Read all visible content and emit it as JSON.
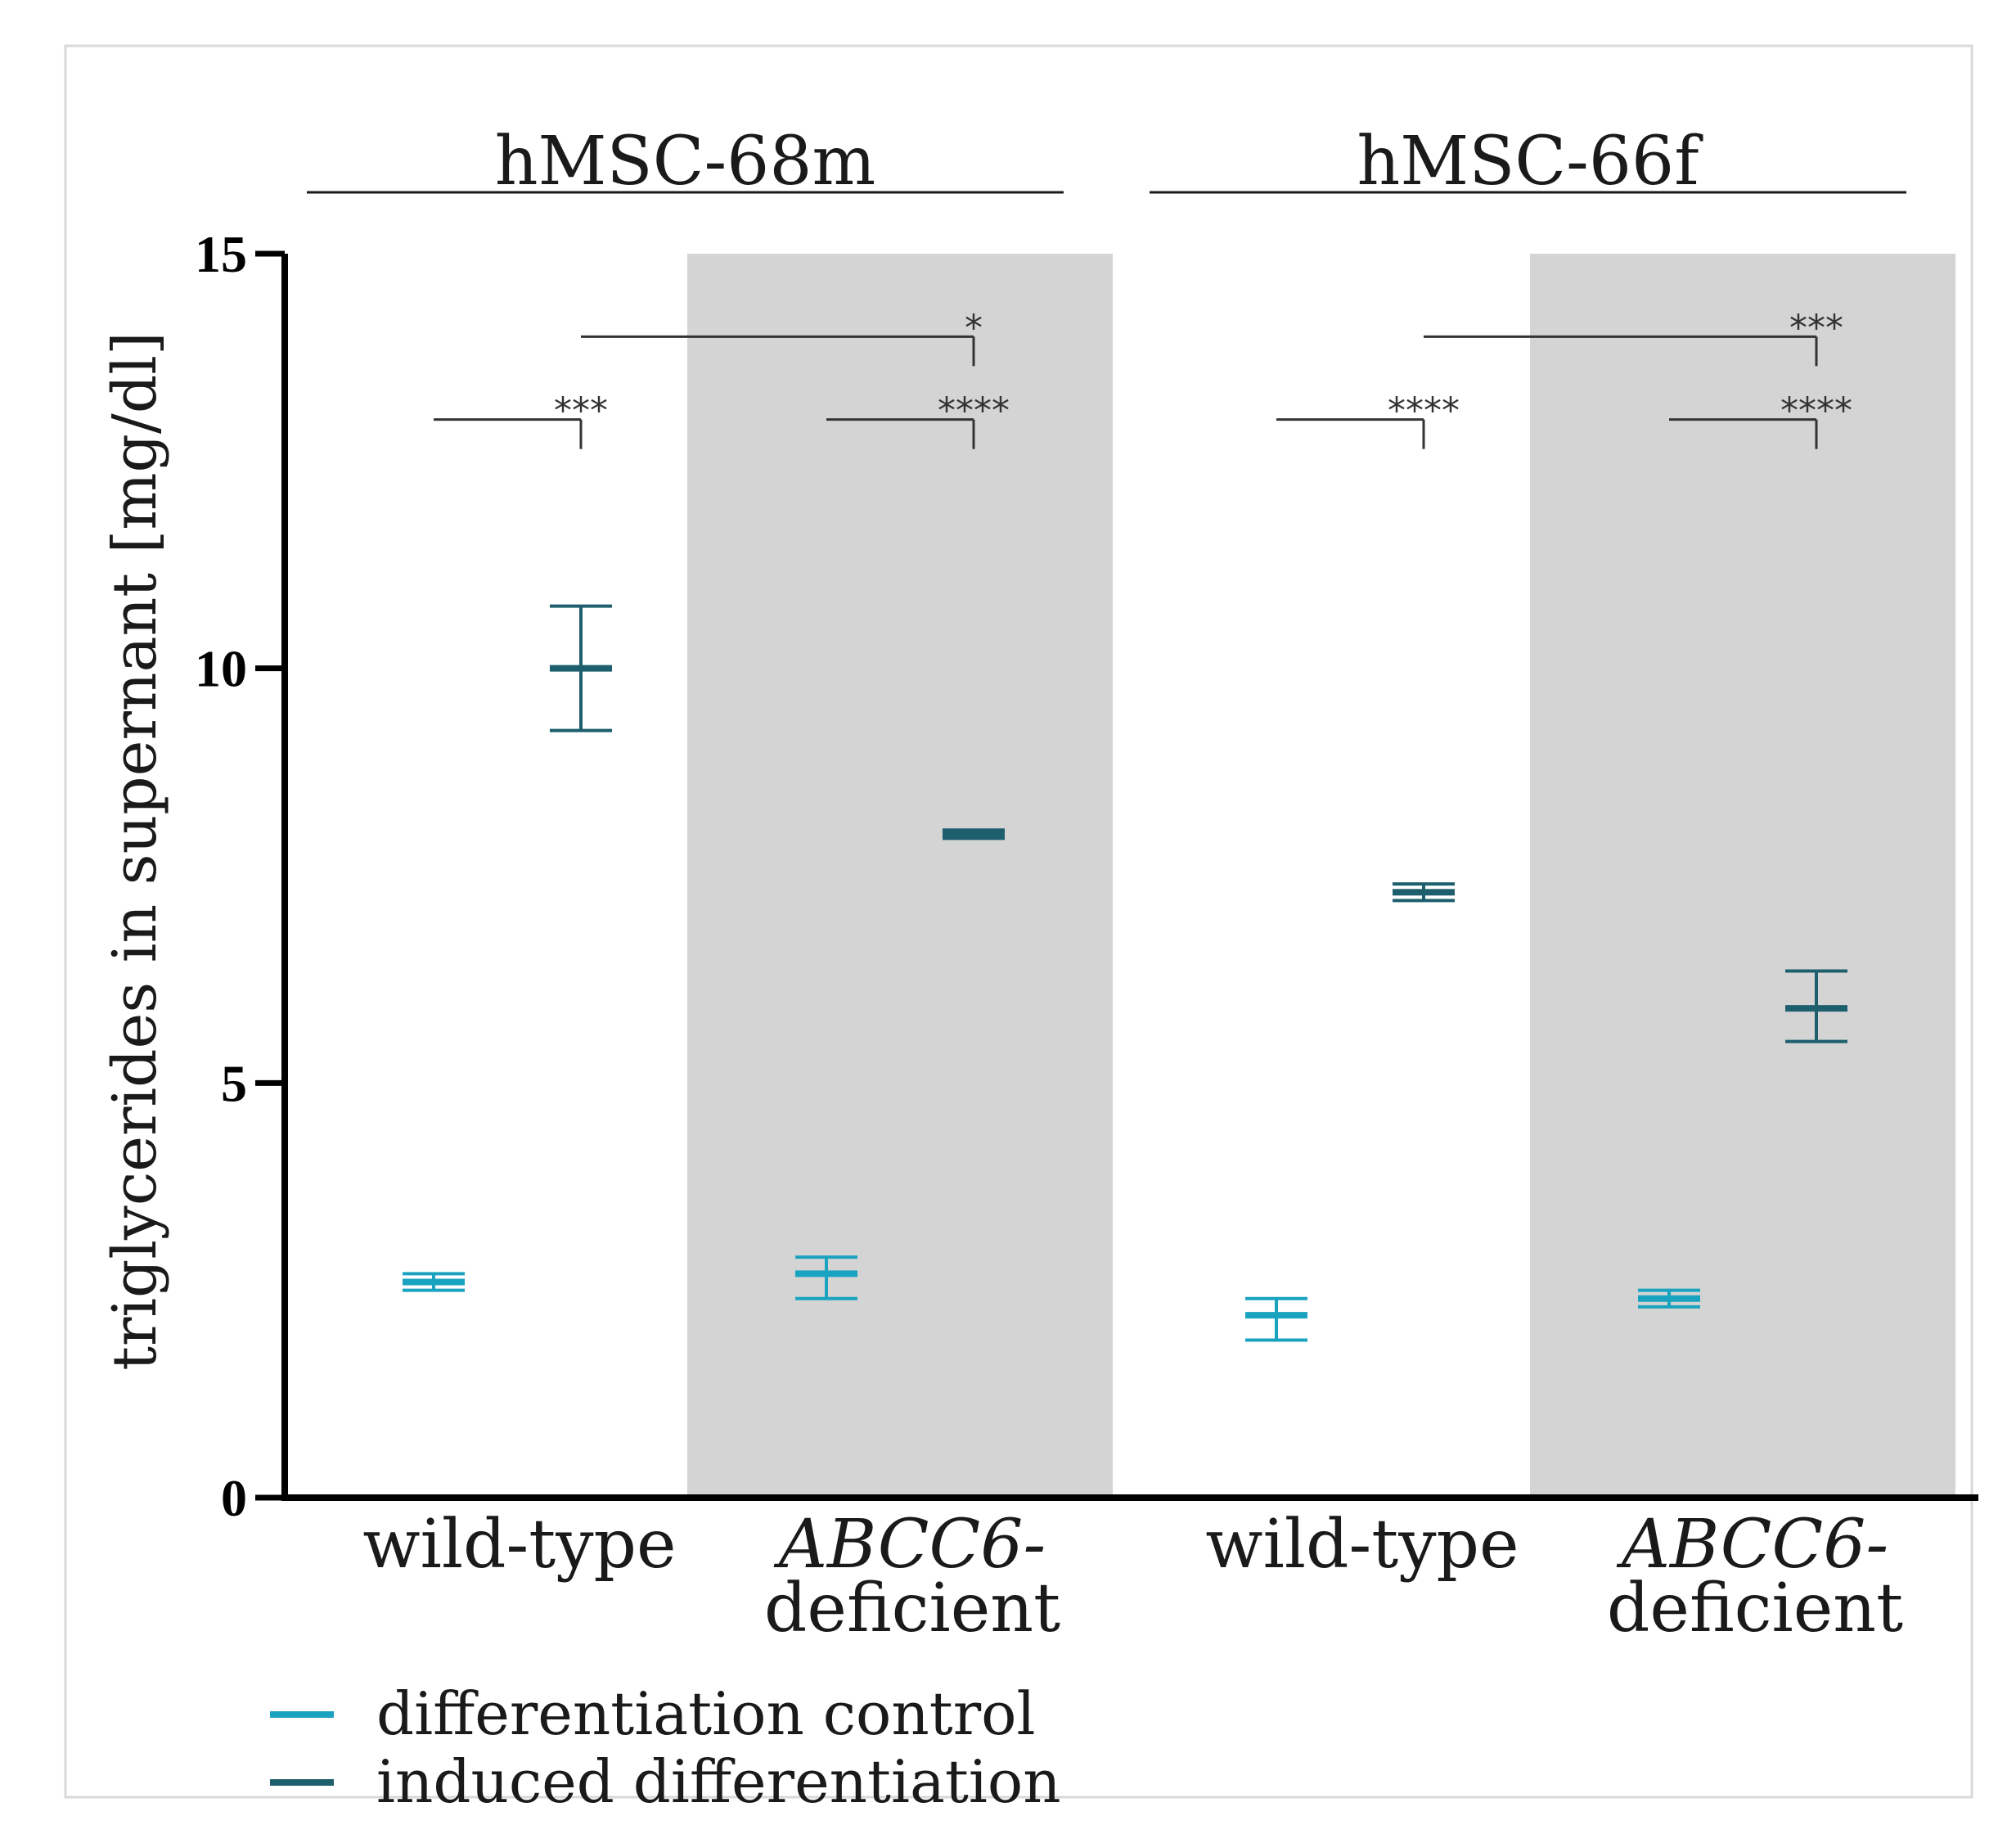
{
  "chart_data": {
    "type": "scatter",
    "ylabel": "triglycerides in supernant [mg/dl]",
    "ylim": [
      0,
      15
    ],
    "yticks": [
      0,
      5,
      10,
      15
    ],
    "groups": [
      {
        "label": "hMSC-68m",
        "categories": [
          "wild-type",
          "ABCC6-deficient"
        ]
      },
      {
        "label": "hMSC-66f",
        "categories": [
          "wild-type",
          "ABCC6-deficient"
        ]
      }
    ],
    "category_labels": [
      {
        "lines": [
          "wild-type"
        ],
        "italic": false
      },
      {
        "lines": [
          "ABCC6-",
          "deficient"
        ],
        "italic_first": true
      },
      {
        "lines": [
          "wild-type"
        ],
        "italic": false
      },
      {
        "lines": [
          "ABCC6-",
          "deficient"
        ],
        "italic_first": true
      }
    ],
    "shaded_categories": [
      1,
      3
    ],
    "series": [
      {
        "name": "differentiation control",
        "color": "#1aa3c0",
        "points": [
          {
            "category": 0,
            "mean": 2.6,
            "low": 2.5,
            "high": 2.7
          },
          {
            "category": 1,
            "mean": 2.7,
            "low": 2.4,
            "high": 2.9
          },
          {
            "category": 2,
            "mean": 2.2,
            "low": 1.9,
            "high": 2.4
          },
          {
            "category": 3,
            "mean": 2.4,
            "low": 2.3,
            "high": 2.5
          }
        ]
      },
      {
        "name": "induced differentiation",
        "color": "#1e5f6e",
        "points": [
          {
            "category": 0,
            "mean": 10.0,
            "low": 9.25,
            "high": 10.75
          },
          {
            "category": 1,
            "mean": 8.0,
            "low": 7.95,
            "high": 8.05
          },
          {
            "category": 2,
            "mean": 7.3,
            "low": 7.2,
            "high": 7.4
          },
          {
            "category": 3,
            "mean": 5.9,
            "low": 5.5,
            "high": 6.35
          }
        ]
      }
    ],
    "significance": [
      {
        "from_category": 0,
        "from_series": 0,
        "to_category": 0,
        "to_series": 1,
        "y": 13.0,
        "label": "***"
      },
      {
        "from_category": 1,
        "from_series": 0,
        "to_category": 1,
        "to_series": 1,
        "y": 13.0,
        "label": "****"
      },
      {
        "from_category": 0,
        "from_series": 1,
        "to_category": 1,
        "to_series": 1,
        "y": 14.0,
        "label": "*"
      },
      {
        "from_category": 2,
        "from_series": 0,
        "to_category": 2,
        "to_series": 1,
        "y": 13.0,
        "label": "****"
      },
      {
        "from_category": 3,
        "from_series": 0,
        "to_category": 3,
        "to_series": 1,
        "y": 13.0,
        "label": "****"
      },
      {
        "from_category": 2,
        "from_series": 1,
        "to_category": 3,
        "to_series": 1,
        "y": 14.0,
        "label": "***"
      }
    ],
    "legend": {
      "placement": "bottom-left"
    },
    "grid": false
  }
}
